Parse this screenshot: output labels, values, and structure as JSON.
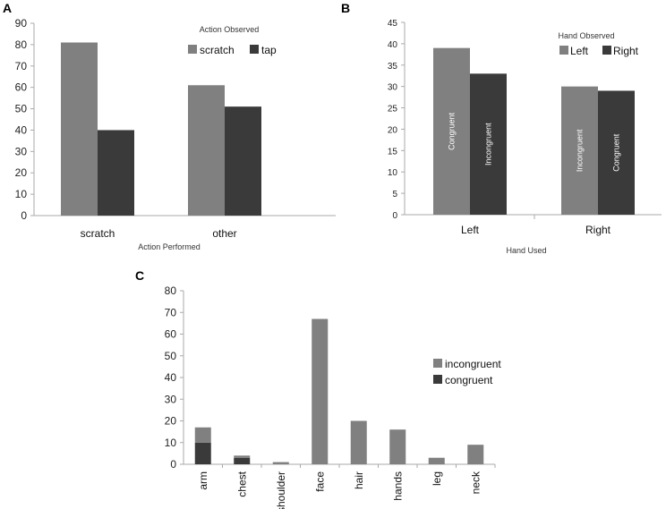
{
  "colors": {
    "light": "#808080",
    "dark": "#3a3a3a",
    "axis": "#aaaaaa"
  },
  "chart_data": [
    {
      "panel": "A",
      "type": "bar",
      "categories": [
        "scratch",
        "other"
      ],
      "series": [
        {
          "name": "scratch",
          "values": [
            81,
            61
          ],
          "color_key": "light"
        },
        {
          "name": "tap",
          "values": [
            40,
            51
          ],
          "color_key": "dark"
        }
      ],
      "ylim": [
        0,
        90
      ],
      "yticks": [
        0,
        10,
        20,
        30,
        40,
        50,
        60,
        70,
        80,
        90
      ],
      "xlabel": "Action Performed",
      "legend_title": "Action Observed",
      "legend_position": "top-right"
    },
    {
      "panel": "B",
      "type": "bar",
      "categories": [
        "Left",
        "Right"
      ],
      "series": [
        {
          "name": "Left",
          "values": [
            39,
            30
          ],
          "labels": [
            "Congruent",
            "Incongruent"
          ],
          "color_key": "light"
        },
        {
          "name": "Right",
          "values": [
            33,
            29
          ],
          "labels": [
            "Incongruent",
            "Congruent"
          ],
          "color_key": "dark"
        }
      ],
      "ylim": [
        0,
        45
      ],
      "yticks": [
        0,
        5,
        10,
        15,
        20,
        25,
        30,
        35,
        40,
        45
      ],
      "xlabel": "Hand Used",
      "legend_title": "Hand Observed",
      "legend_position": "top-right"
    },
    {
      "panel": "C",
      "type": "bar",
      "stacked": true,
      "categories": [
        "arm",
        "chest",
        "shoulder",
        "face",
        "hair",
        "hands",
        "leg",
        "neck"
      ],
      "series": [
        {
          "name": "congruent",
          "values": [
            10,
            3,
            0,
            0,
            0,
            0,
            0,
            0
          ],
          "color_key": "dark"
        },
        {
          "name": "incongruent",
          "values": [
            7,
            1,
            1,
            67,
            20,
            16,
            3,
            9
          ],
          "color_key": "light"
        }
      ],
      "legend_order": [
        "incongruent",
        "congruent"
      ],
      "ylim": [
        0,
        80
      ],
      "yticks": [
        0,
        10,
        20,
        30,
        40,
        50,
        60,
        70,
        80
      ],
      "xlabel": "",
      "legend_position": "right"
    }
  ]
}
